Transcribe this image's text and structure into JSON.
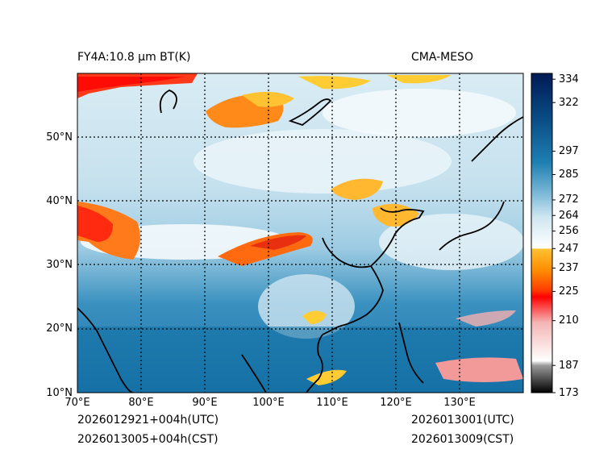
{
  "header": {
    "left_title": "FY4A:10.8 µm BT(K)",
    "right_title": "CMA-MESO"
  },
  "map": {
    "lon_ticks": [
      "70°E",
      "80°E",
      "90°E",
      "100°E",
      "110°E",
      "120°E",
      "130°E"
    ],
    "lat_ticks": [
      "10°N",
      "20°N",
      "30°N",
      "40°N",
      "50°N"
    ],
    "lon_values": [
      70,
      80,
      90,
      100,
      110,
      120,
      130
    ],
    "lat_values": [
      10,
      20,
      30,
      40,
      50
    ],
    "lon_range": [
      70,
      140
    ],
    "lat_range": [
      10,
      60
    ],
    "gridlines": "dotted"
  },
  "colorbar": {
    "variable": "Brightness Temperature (K)",
    "range": [
      173,
      337
    ],
    "tick_labels": [
      "334",
      "322",
      "297",
      "285",
      "272",
      "264",
      "256",
      "247",
      "237",
      "225",
      "210",
      "187",
      "173"
    ],
    "tick_values": [
      334,
      322,
      297,
      285,
      272,
      264,
      256,
      247,
      237,
      225,
      210,
      187,
      173
    ],
    "colors": [
      "#000000",
      "#b0b0b0",
      "#ffffff",
      "#f08080",
      "#ff0000",
      "#ff7a00",
      "#ffcc33",
      "#ffffff",
      "#a9d3e6",
      "#3a91c0",
      "#0a5e93",
      "#001c5c"
    ]
  },
  "footer": {
    "left_line1": "2026012921+004h(UTC)",
    "left_line2": "2026013005+004h(CST)",
    "right_line1": "2026013001(UTC)",
    "right_line2": "2026013009(CST)"
  }
}
